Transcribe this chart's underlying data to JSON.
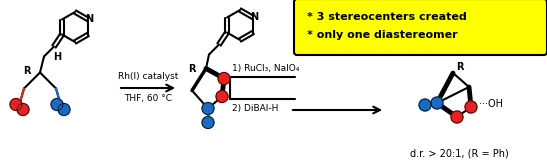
{
  "arrow1_text_top": "Rh(I) catalyst",
  "arrow1_text_bottom": "THF, 60 °C",
  "arrow2_text_top": "1) RuCl₃, NaIO₄",
  "arrow2_text_bottom": "2) DiBAl-H",
  "yellow_box_line1": "* 3 stereocenters created",
  "yellow_box_line2": "* only one diastereomer",
  "dr_text": "d.r. > 20:1, (R = Ph)",
  "red_color": "#e82020",
  "blue_color": "#1a6abf",
  "yellow_bg": "#ffff00",
  "black": "#000000",
  "white": "#ffffff",
  "fig_width": 5.47,
  "fig_height": 1.63,
  "dpi": 100
}
